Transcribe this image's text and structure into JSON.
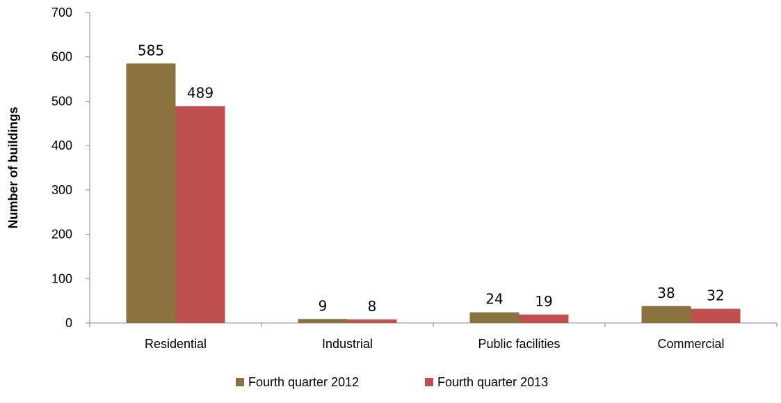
{
  "chart_data": {
    "type": "bar",
    "title": "",
    "xlabel": "",
    "ylabel": "Number of buildings",
    "ylim": [
      0,
      700
    ],
    "yticks": [
      0,
      100,
      200,
      300,
      400,
      500,
      600,
      700
    ],
    "grid": false,
    "legend_position": "bottom",
    "categories": [
      "Residential",
      "Industrial",
      "Public facilities",
      "Commercial"
    ],
    "series": [
      {
        "name": "Fourth quarter 2012",
        "values": [
          585,
          9,
          24,
          38
        ],
        "color": "#8b7340"
      },
      {
        "name": "Fourth quarter 2013",
        "values": [
          489,
          8,
          19,
          32
        ],
        "color": "#c0504d"
      }
    ]
  }
}
